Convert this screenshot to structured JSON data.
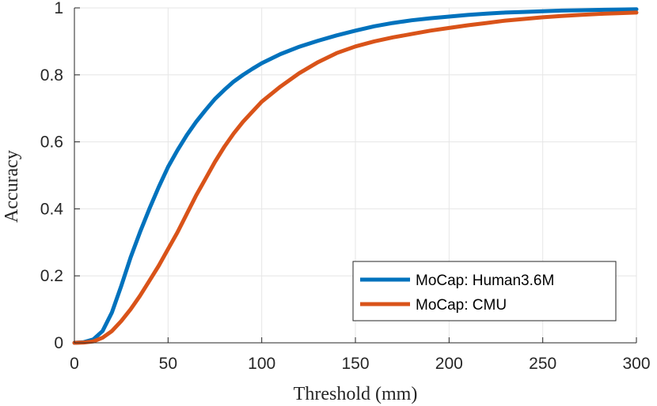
{
  "chart_data": {
    "type": "line",
    "title": "",
    "xlabel": "Threshold (mm)",
    "ylabel": "Accuracy",
    "xlim": [
      0,
      300
    ],
    "ylim": [
      0,
      1
    ],
    "xticks": [
      0,
      50,
      100,
      150,
      200,
      250,
      300
    ],
    "yticks": [
      0,
      0.2,
      0.4,
      0.6,
      0.8,
      1
    ],
    "xtick_labels": [
      "0",
      "50",
      "100",
      "150",
      "200",
      "250",
      "300"
    ],
    "ytick_labels": [
      "0",
      "0.2",
      "0.4",
      "0.6",
      "0.8",
      "1"
    ],
    "grid": true,
    "legend_position": "bottom-right",
    "series": [
      {
        "name": "MoCap: Human3.6M",
        "color": "#0072BD",
        "x": [
          0,
          5,
          10,
          15,
          20,
          25,
          30,
          35,
          40,
          45,
          50,
          55,
          60,
          65,
          70,
          75,
          80,
          85,
          90,
          95,
          100,
          110,
          120,
          130,
          140,
          150,
          160,
          170,
          180,
          190,
          200,
          210,
          220,
          230,
          240,
          250,
          260,
          270,
          280,
          290,
          300
        ],
        "y": [
          0,
          0.002,
          0.01,
          0.035,
          0.09,
          0.17,
          0.255,
          0.33,
          0.4,
          0.465,
          0.525,
          0.575,
          0.62,
          0.66,
          0.695,
          0.728,
          0.755,
          0.78,
          0.8,
          0.818,
          0.835,
          0.862,
          0.884,
          0.902,
          0.918,
          0.932,
          0.945,
          0.955,
          0.963,
          0.969,
          0.974,
          0.979,
          0.983,
          0.986,
          0.988,
          0.99,
          0.992,
          0.993,
          0.994,
          0.995,
          0.996
        ]
      },
      {
        "name": "MoCap: CMU",
        "color": "#D95319",
        "x": [
          0,
          5,
          10,
          15,
          20,
          25,
          30,
          35,
          40,
          45,
          50,
          55,
          60,
          65,
          70,
          75,
          80,
          85,
          90,
          95,
          100,
          110,
          120,
          130,
          140,
          150,
          160,
          170,
          180,
          190,
          200,
          210,
          220,
          230,
          240,
          250,
          260,
          270,
          280,
          290,
          300
        ],
        "y": [
          0,
          0.001,
          0.004,
          0.015,
          0.035,
          0.065,
          0.1,
          0.14,
          0.185,
          0.23,
          0.28,
          0.33,
          0.385,
          0.44,
          0.49,
          0.54,
          0.585,
          0.625,
          0.66,
          0.69,
          0.72,
          0.765,
          0.805,
          0.838,
          0.865,
          0.885,
          0.9,
          0.912,
          0.922,
          0.932,
          0.94,
          0.948,
          0.955,
          0.962,
          0.967,
          0.972,
          0.976,
          0.979,
          0.982,
          0.984,
          0.986
        ]
      }
    ]
  }
}
